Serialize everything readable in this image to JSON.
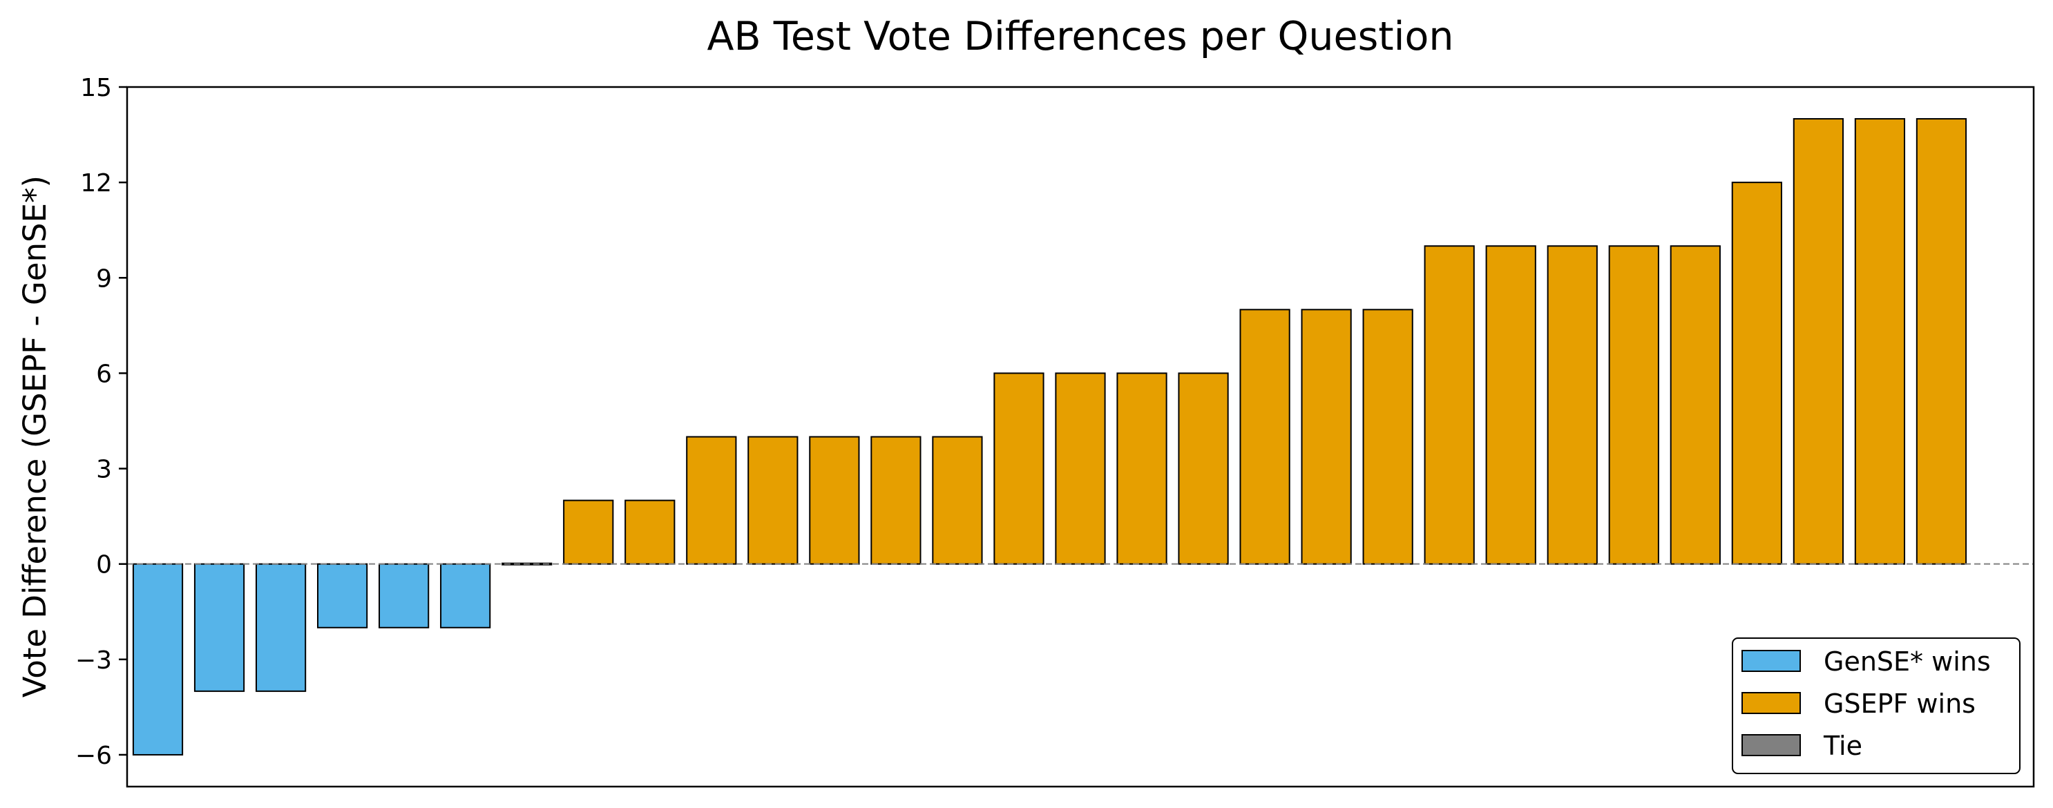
{
  "chart_data": {
    "type": "bar",
    "title": "AB Test Vote Differences per Question",
    "xlabel": "",
    "ylabel": "Vote Difference (GSEPF - GenSE*)",
    "ylim": [
      -7,
      15
    ],
    "yticks": [
      -6,
      -3,
      0,
      3,
      6,
      9,
      12,
      15
    ],
    "ytick_labels": [
      "−6",
      "−3",
      "0",
      "3",
      "6",
      "9",
      "12",
      "15"
    ],
    "xlim": [
      -0.5,
      30.5
    ],
    "values": [
      -6,
      -4,
      -4,
      -2,
      -2,
      -2,
      0,
      2,
      2,
      4,
      4,
      4,
      4,
      4,
      6,
      6,
      6,
      6,
      8,
      8,
      8,
      10,
      10,
      10,
      10,
      10,
      12,
      14,
      14,
      14
    ],
    "zero_line": {
      "y": 0,
      "style": "dashed",
      "color": "#808080"
    },
    "grid": false,
    "legend": {
      "placement": "lower-right",
      "entries": [
        {
          "label": "GenSE* wins",
          "color": "#56B4E9"
        },
        {
          "label": "GSEPF wins",
          "color": "#E69F00"
        },
        {
          "label": "Tie",
          "color": "#808080"
        }
      ]
    },
    "colors": {
      "negative": "#56B4E9",
      "positive": "#E69F00",
      "tie": "#808080",
      "edge": "#000000"
    }
  }
}
